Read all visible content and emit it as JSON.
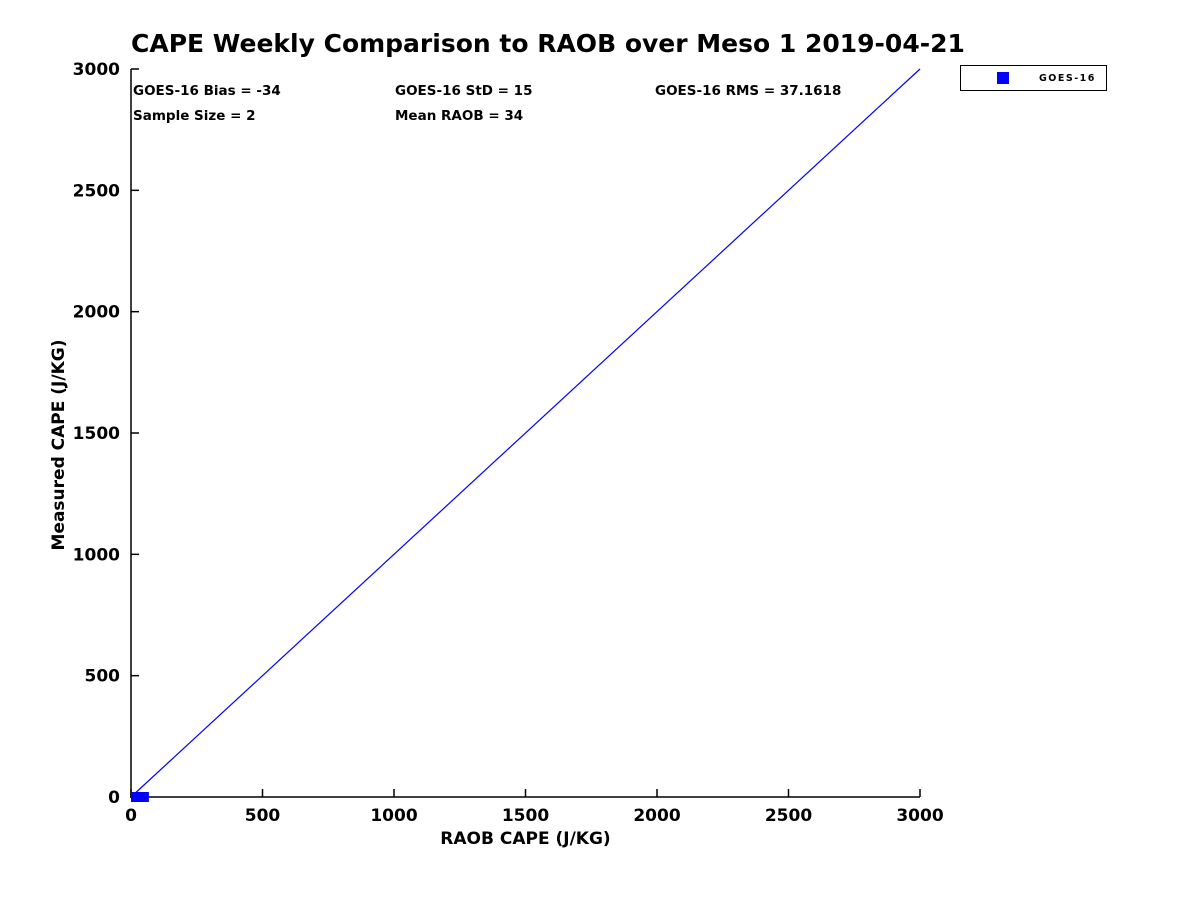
{
  "title": "CAPE Weekly Comparison to RAOB over Meso 1 2019-04-21",
  "stats": {
    "bias": "GOES-16 Bias = -34",
    "std": "GOES-16 StD = 15",
    "rms": "GOES-16 RMS = 37.1618",
    "sample_size": "Sample Size = 2",
    "mean_raob": "Mean RAOB = 34"
  },
  "legend": {
    "label": "GOES-16",
    "marker": "square",
    "marker_color": "#0000ff",
    "position": "top-right-outside"
  },
  "colors": {
    "accent_blue": "#0000ff",
    "axis_black": "#000000",
    "background": "#ffffff"
  },
  "chart_data": {
    "type": "scatter",
    "title": "CAPE Weekly Comparison to RAOB over Meso 1 2019-04-21",
    "xlabel": "RAOB CAPE (J/KG)",
    "ylabel": "Measured CAPE (J/KG)",
    "xlim": [
      0,
      3000
    ],
    "ylim": [
      0,
      3000
    ],
    "xticks": [
      0,
      500,
      1000,
      1500,
      2000,
      2500,
      3000
    ],
    "yticks": [
      0,
      500,
      1000,
      1500,
      2000,
      2500,
      3000
    ],
    "grid": false,
    "legend_position": "top-right-outside",
    "series": [
      {
        "name": "GOES-16",
        "type": "scatter",
        "marker": "square",
        "color": "#0000ff",
        "points": [
          {
            "x": 19,
            "y": 0
          },
          {
            "x": 49,
            "y": 0
          }
        ]
      }
    ],
    "reference_line": {
      "name": "identity-line",
      "from": [
        0,
        0
      ],
      "to": [
        3000,
        3000
      ],
      "color": "#0000ff"
    },
    "annotations": [
      "GOES-16 Bias = -34",
      "GOES-16 StD = 15",
      "GOES-16 RMS = 37.1618",
      "Sample Size = 2",
      "Mean RAOB = 34"
    ]
  }
}
